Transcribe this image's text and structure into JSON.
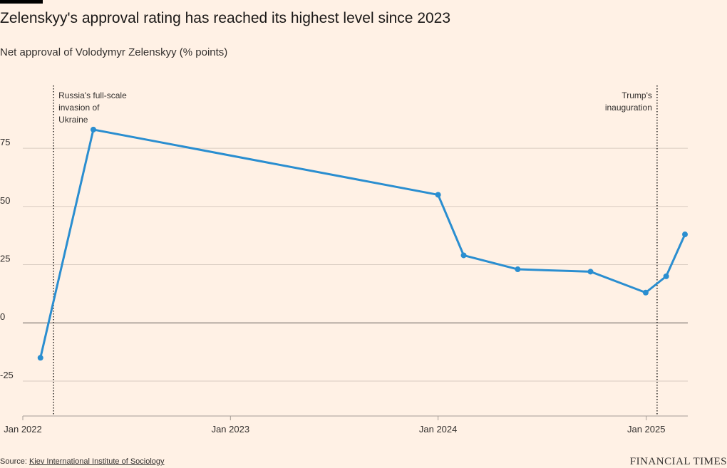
{
  "header": {
    "title": "Zelenskyy's approval rating has reached its highest level since 2023",
    "subtitle": "Net approval of Volodymyr Zelenskyy (% points)"
  },
  "footer": {
    "source_prefix": "Source: ",
    "source_link": "Kiev International Institute of Sociology",
    "brand": "FINANCIAL TIMES"
  },
  "colors": {
    "background": "#fff1e5",
    "line": "#2a8ed0",
    "grid": "#d9ccc1",
    "zero_line": "#66605c",
    "annotation_line": "#33302e"
  },
  "chart_data": {
    "type": "line",
    "title": "Zelenskyy's approval rating has reached its highest level since 2023",
    "subtitle": "Net approval of Volodymyr Zelenskyy (% points)",
    "xlabel": "",
    "ylabel": "",
    "x_range": [
      "2022-01-01",
      "2025-03-15"
    ],
    "ylim": [
      -40,
      105
    ],
    "y_ticks": [
      -25,
      0,
      25,
      50,
      75
    ],
    "y_tick_labels": [
      "-25",
      "0",
      "25",
      "50",
      "75"
    ],
    "x_ticks": [
      "2022-01-01",
      "2023-01-01",
      "2024-01-01",
      "2025-01-01"
    ],
    "x_tick_labels": [
      "Jan 2022",
      "Jan 2023",
      "Jan 2024",
      "Jan 2025"
    ],
    "grid": true,
    "series": [
      {
        "x": [
          "2022-02-01",
          "2022-05-05",
          "2024-01-01",
          "2024-02-15",
          "2024-05-20",
          "2024-09-25",
          "2024-12-31",
          "2025-02-05",
          "2025-03-10"
        ],
        "values": [
          -15,
          83,
          55,
          29,
          23,
          22,
          13,
          20,
          38
        ]
      }
    ],
    "annotations": [
      {
        "x": "2022-02-24",
        "label": [
          "Russia's full-scale",
          "invasion of",
          "Ukraine"
        ]
      },
      {
        "x": "2025-01-20",
        "label": [
          "Trump's",
          "inauguration"
        ]
      }
    ]
  }
}
